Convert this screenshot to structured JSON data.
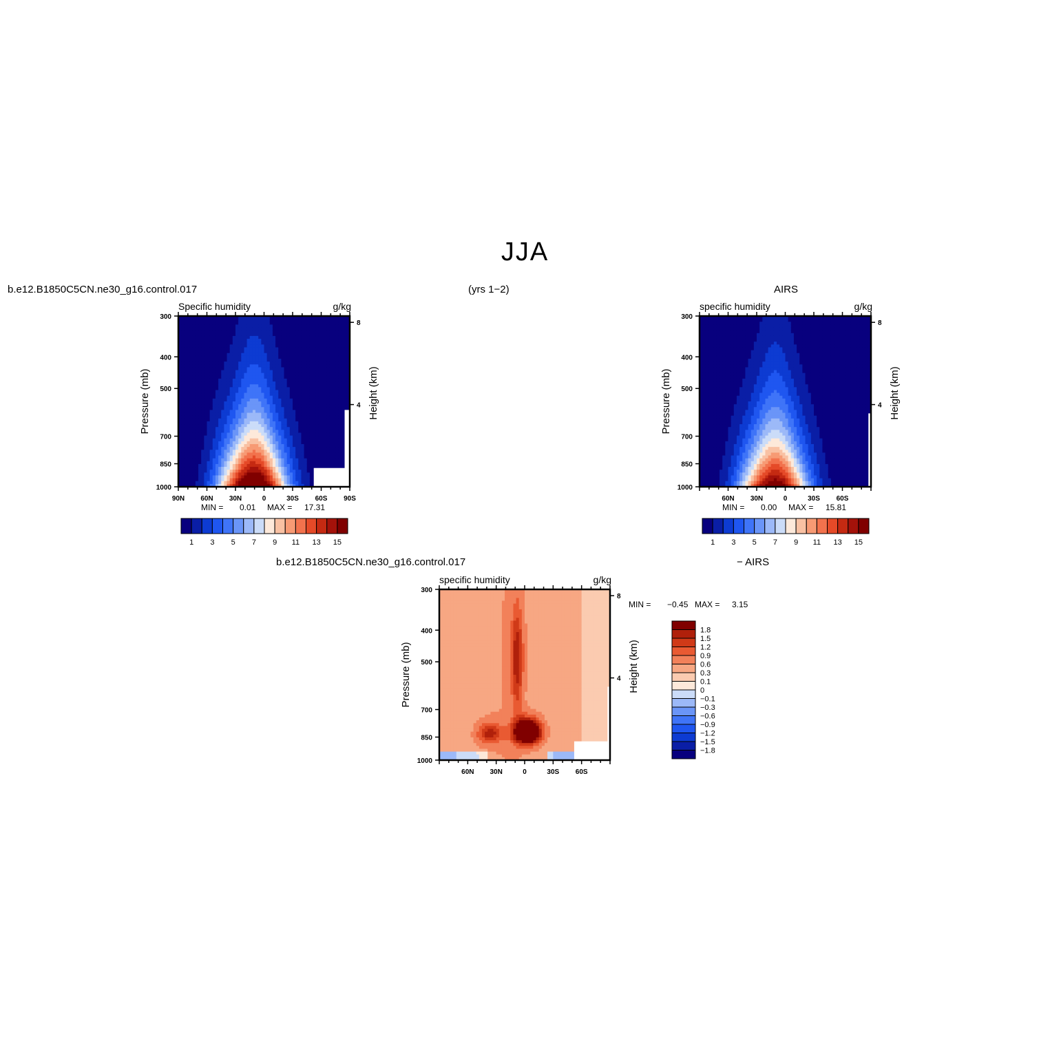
{
  "title": "JJA",
  "subtitle": "(yrs 1−2)",
  "colors": {
    "abs_levels": [
      "#08007e",
      "#0a1ea6",
      "#0d3bd2",
      "#1f56f0",
      "#3f74f8",
      "#6a95f8",
      "#9cb9f8",
      "#cbdcf8",
      "#fde9da",
      "#f9c1a3",
      "#f79a74",
      "#f2724d",
      "#e54a28",
      "#c52a12",
      "#a4120a",
      "#800000"
    ],
    "diff_levels": [
      "#08007e",
      "#0a1ea6",
      "#0d3bd2",
      "#1f56f0",
      "#3f74f8",
      "#6a95f8",
      "#9cb9f8",
      "#cbdcf8",
      "#fde9da",
      "#fbcbb0",
      "#f7a783",
      "#f2815a",
      "#e95a32",
      "#d03a18",
      "#b0200b",
      "#800000"
    ]
  },
  "chart_data": [
    {
      "id": "model",
      "type": "heatmap",
      "case_label": "b.e12.B1850C5CN.ne30_g16.control.017",
      "left_label": "Specific humidity",
      "right_label": "g/kg",
      "ylabel": "Pressure (mb)",
      "ylabel_right": "Height (km)",
      "x_ticks": [
        "90N",
        "60N",
        "30N",
        "0",
        "30S",
        "60S",
        "90S"
      ],
      "y_ticks": [
        "300",
        "400",
        "500",
        "700",
        "850",
        "1000"
      ],
      "y_right_ticks": [
        "8",
        "4"
      ],
      "xlim": [
        90,
        -90
      ],
      "ylim": [
        1000,
        300
      ],
      "min_label": "MIN =",
      "min_value": "0.01",
      "max_label": "MAX =",
      "max_value": "17.31",
      "field_peak": {
        "lat": 7,
        "pressure": 1000,
        "value": 17.31
      },
      "colorbar_labels": [
        "1",
        "3",
        "5",
        "7",
        "9",
        "11",
        "13",
        "15"
      ],
      "colorbar_levels": [
        1,
        2,
        3,
        4,
        5,
        6,
        7,
        8,
        9,
        10,
        11,
        12,
        13,
        14,
        15
      ]
    },
    {
      "id": "obs",
      "type": "heatmap",
      "case_label": "AIRS",
      "left_label": "specific humidity",
      "right_label": "g/kg",
      "ylabel": "Pressure (mb)",
      "ylabel_right": "Height (km)",
      "x_ticks": [
        "60N",
        "30N",
        "0",
        "30S",
        "60S"
      ],
      "y_ticks": [
        "300",
        "400",
        "500",
        "700",
        "850",
        "1000"
      ],
      "y_right_ticks": [
        "8",
        "4"
      ],
      "xlim": [
        90,
        -90
      ],
      "ylim": [
        1000,
        300
      ],
      "min_label": "MIN =",
      "min_value": "0.00",
      "max_label": "MAX =",
      "max_value": "15.81",
      "field_peak": {
        "lat": 7,
        "pressure": 1000,
        "value": 15.81
      },
      "colorbar_labels": [
        "1",
        "3",
        "5",
        "7",
        "9",
        "11",
        "13",
        "15"
      ],
      "colorbar_levels": [
        1,
        2,
        3,
        4,
        5,
        6,
        7,
        8,
        9,
        10,
        11,
        12,
        13,
        14,
        15
      ]
    },
    {
      "id": "diff",
      "type": "heatmap",
      "case_label_left": "b.e12.B1850C5CN.ne30_g16.control.017",
      "case_label_right": "− AIRS",
      "left_label": "specific humidity",
      "right_label": "g/kg",
      "ylabel": "Pressure (mb)",
      "ylabel_right": "Height (km)",
      "x_ticks": [
        "60N",
        "30N",
        "0",
        "30S",
        "60S"
      ],
      "y_ticks": [
        "300",
        "400",
        "500",
        "700",
        "850",
        "1000"
      ],
      "y_right_ticks": [
        "8",
        "4"
      ],
      "xlim": [
        90,
        -90
      ],
      "ylim": [
        1000,
        300
      ],
      "min_label": "MIN =",
      "min_value": "−0.45",
      "max_label": "MAX =",
      "max_value": "3.15",
      "colorbar_labels": [
        "1.8",
        "1.5",
        "1.2",
        "0.9",
        "0.6",
        "0.3",
        "0.1",
        "0",
        "−0.1",
        "−0.3",
        "−0.6",
        "−0.9",
        "−1.2",
        "−1.5",
        "−1.8"
      ],
      "colorbar_levels": [
        -1.8,
        -1.5,
        -1.2,
        -0.9,
        -0.6,
        -0.3,
        -0.1,
        0,
        0.1,
        0.3,
        0.6,
        0.9,
        1.2,
        1.5,
        1.8
      ]
    }
  ]
}
